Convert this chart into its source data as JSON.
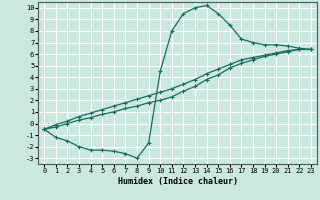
{
  "xlabel": "Humidex (Indice chaleur)",
  "background_color": "#c8e8e0",
  "grid_color": "#ffffff",
  "line_color": "#1a6b60",
  "xlim": [
    -0.5,
    23.5
  ],
  "ylim": [
    -3.5,
    10.5
  ],
  "xticks": [
    0,
    1,
    2,
    3,
    4,
    5,
    6,
    7,
    8,
    9,
    10,
    11,
    12,
    13,
    14,
    15,
    16,
    17,
    18,
    19,
    20,
    21,
    22,
    23
  ],
  "yticks": [
    -3,
    -2,
    -1,
    0,
    1,
    2,
    3,
    4,
    5,
    6,
    7,
    8,
    9,
    10
  ],
  "line1_x": [
    0,
    1,
    2,
    3,
    4,
    5,
    6,
    7,
    8,
    9,
    10,
    11,
    12,
    13,
    14,
    15,
    16,
    17,
    18,
    19,
    20,
    21,
    22,
    23
  ],
  "line1_y": [
    -0.5,
    -1.2,
    -1.5,
    -2.0,
    -2.3,
    -2.3,
    -2.4,
    -2.6,
    -3.0,
    -1.7,
    4.5,
    8.0,
    9.5,
    10.0,
    10.2,
    9.5,
    8.5,
    7.3,
    7.0,
    6.8,
    6.8,
    6.7,
    6.5,
    6.4
  ],
  "line2_x": [
    0,
    1,
    2,
    3,
    4,
    5,
    6,
    7,
    8,
    9,
    10,
    11,
    12,
    13,
    14,
    15,
    16,
    17,
    18,
    19,
    20,
    21,
    22,
    23
  ],
  "line2_y": [
    -0.5,
    -0.3,
    0.0,
    0.3,
    0.5,
    0.8,
    1.0,
    1.3,
    1.5,
    1.8,
    2.0,
    2.3,
    2.8,
    3.2,
    3.8,
    4.2,
    4.8,
    5.2,
    5.5,
    5.8,
    6.0,
    6.2,
    6.4,
    6.4
  ],
  "line3_x": [
    0,
    1,
    2,
    3,
    4,
    5,
    6,
    7,
    8,
    9,
    10,
    11,
    12,
    13,
    14,
    15,
    16,
    17,
    18,
    19,
    20,
    21,
    22,
    23
  ],
  "line3_y": [
    -0.5,
    -0.1,
    0.2,
    0.6,
    0.9,
    1.2,
    1.5,
    1.8,
    2.1,
    2.4,
    2.7,
    3.0,
    3.4,
    3.8,
    4.3,
    4.7,
    5.1,
    5.5,
    5.7,
    5.9,
    6.1,
    6.3,
    6.4,
    6.4
  ]
}
